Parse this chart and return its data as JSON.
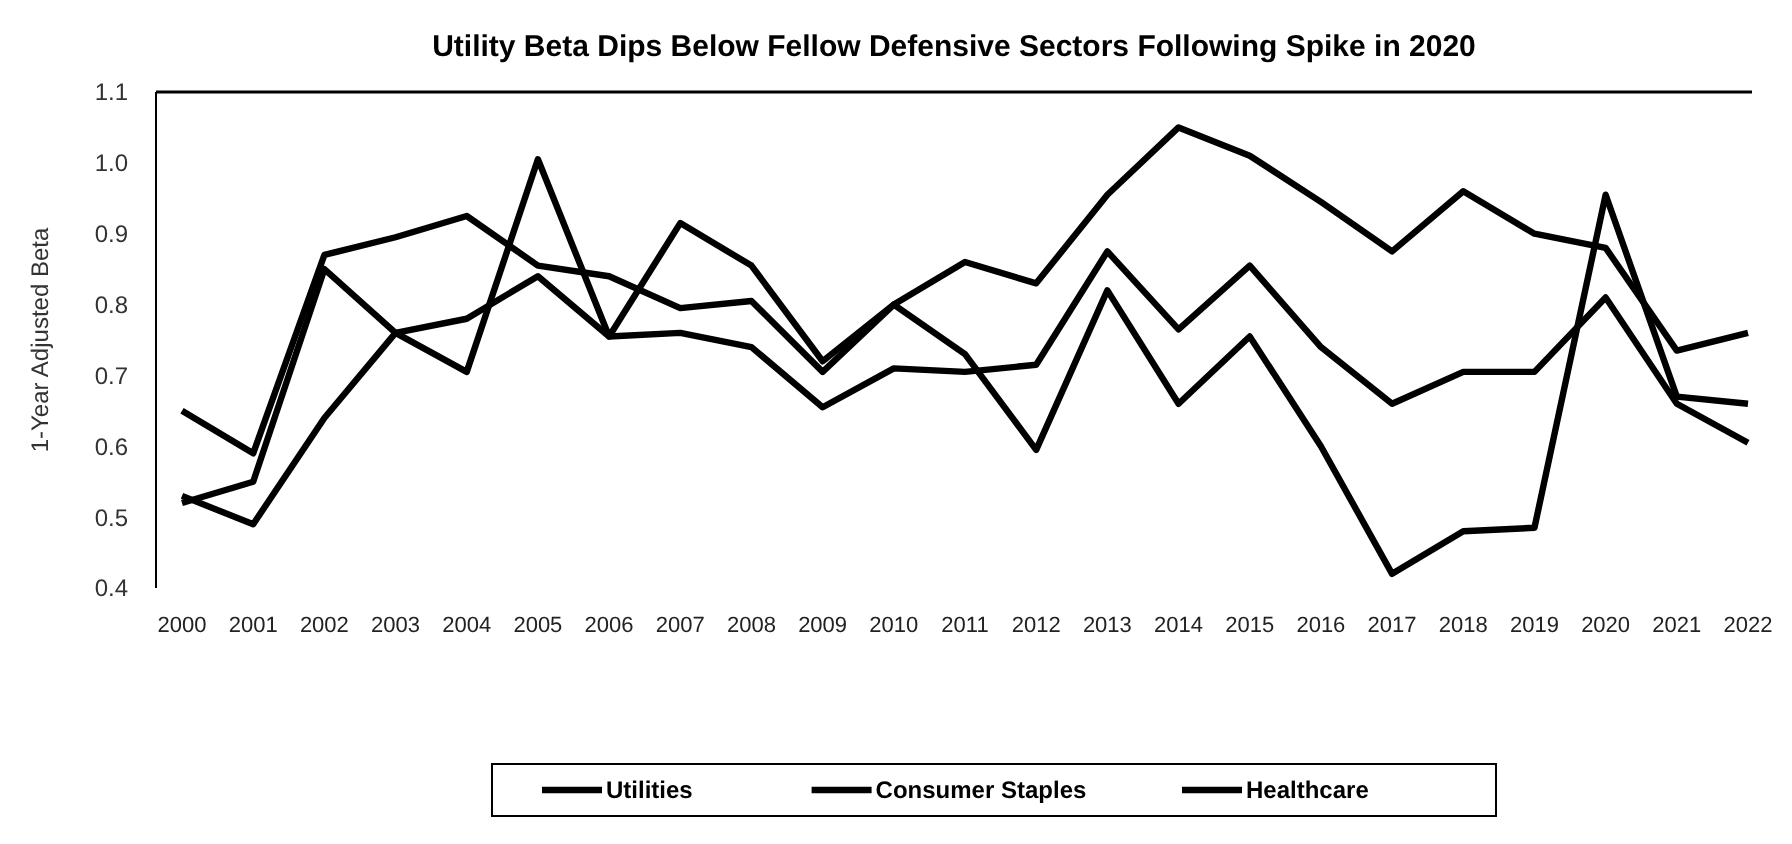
{
  "chart_data": {
    "type": "line",
    "title": "Utility Beta Dips Below Fellow Defensive Sectors Following Spike in 2020",
    "ylabel": "1-Year Adjusted Beta",
    "categories": [
      "2000",
      "2001",
      "2002",
      "2003",
      "2004",
      "2005",
      "2006",
      "2007",
      "2008",
      "2009",
      "2010",
      "2011",
      "2012",
      "2013",
      "2014",
      "2015",
      "2016",
      "2017",
      "2018",
      "2019",
      "2020",
      "2021",
      "2022"
    ],
    "ylim": [
      0.4,
      1.1
    ],
    "yticks": [
      {
        "value": 0.4,
        "label": "0.4"
      },
      {
        "value": 0.5,
        "label": "0.5"
      },
      {
        "value": 0.6,
        "label": "0.6"
      },
      {
        "value": 0.7,
        "label": "0.7"
      },
      {
        "value": 0.8,
        "label": "0.8"
      },
      {
        "value": 0.9,
        "label": "0.9"
      },
      {
        "value": 1.0,
        "label": "1.0"
      },
      {
        "value": 1.1,
        "label": "1.1"
      }
    ],
    "grid": false,
    "legend": "bottom",
    "marker": "none",
    "line_style": "solid",
    "series": [
      {
        "name": "Utilities",
        "color": "#000000",
        "values": [
          0.52,
          0.55,
          0.85,
          0.76,
          0.705,
          1.005,
          0.755,
          0.915,
          0.855,
          0.72,
          0.8,
          0.73,
          0.595,
          0.82,
          0.66,
          0.755,
          0.6,
          0.42,
          0.48,
          0.485,
          0.955,
          0.67,
          0.66
        ]
      },
      {
        "name": "Consumer Staples",
        "color": "#000000",
        "values": [
          0.53,
          0.49,
          0.64,
          0.76,
          0.78,
          0.84,
          0.755,
          0.76,
          0.74,
          0.655,
          0.71,
          0.705,
          0.715,
          0.875,
          0.765,
          0.855,
          0.74,
          0.66,
          0.705,
          0.705,
          0.81,
          0.66,
          0.605
        ]
      },
      {
        "name": "Healthcare",
        "color": "#000000",
        "values": [
          0.65,
          0.59,
          0.87,
          0.895,
          0.925,
          0.855,
          0.84,
          0.795,
          0.805,
          0.705,
          0.8,
          0.86,
          0.83,
          0.955,
          1.05,
          1.01,
          0.945,
          0.875,
          0.96,
          0.9,
          0.88,
          0.735,
          0.76
        ]
      }
    ]
  }
}
